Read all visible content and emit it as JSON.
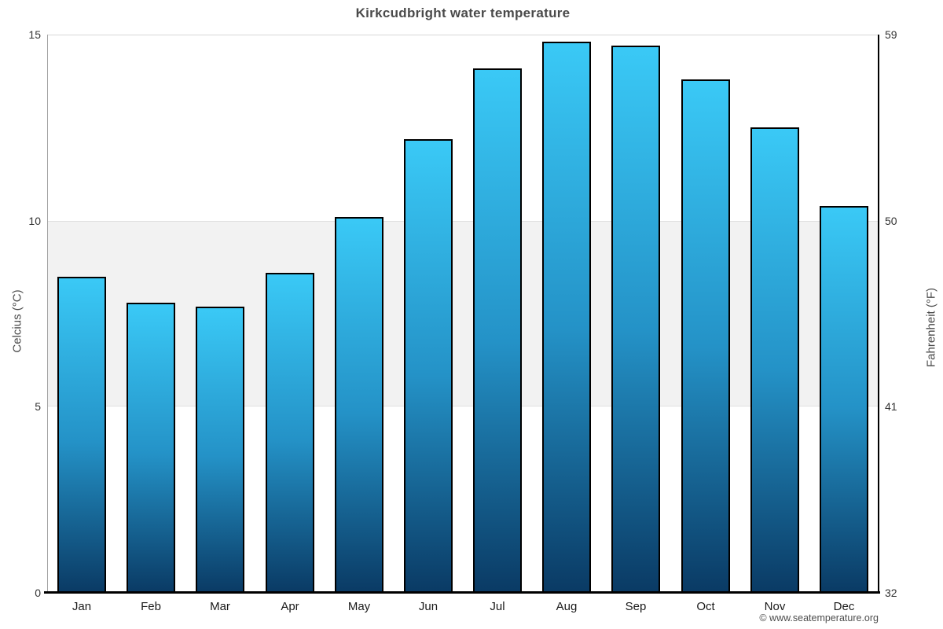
{
  "chart_data": {
    "type": "bar",
    "title": "Kirkcudbright water temperature",
    "categories": [
      "Jan",
      "Feb",
      "Mar",
      "Apr",
      "May",
      "Jun",
      "Jul",
      "Aug",
      "Sep",
      "Oct",
      "Nov",
      "Dec"
    ],
    "values": [
      8.5,
      7.8,
      7.7,
      8.6,
      10.1,
      12.2,
      14.1,
      14.8,
      14.7,
      13.8,
      12.5,
      10.4
    ],
    "unit": "°C",
    "ylabel_left": "Celcius (°C)",
    "ylabel_right": "Fahrenheit (°F)",
    "yticks_left": [
      0,
      5,
      10,
      15
    ],
    "yticks_right": [
      32,
      41,
      50,
      59
    ],
    "ylim": [
      0,
      15
    ],
    "band": {
      "from": 5,
      "to": 10,
      "color": "#f2f2f2"
    },
    "grid_on": true,
    "legend_position": "none",
    "bar_color_top": "#3ac9f6",
    "bar_color_bottom": "#0a3a64",
    "bar_border_color": "#000000"
  },
  "footer": {
    "credit": "© www.seatemperature.org"
  }
}
